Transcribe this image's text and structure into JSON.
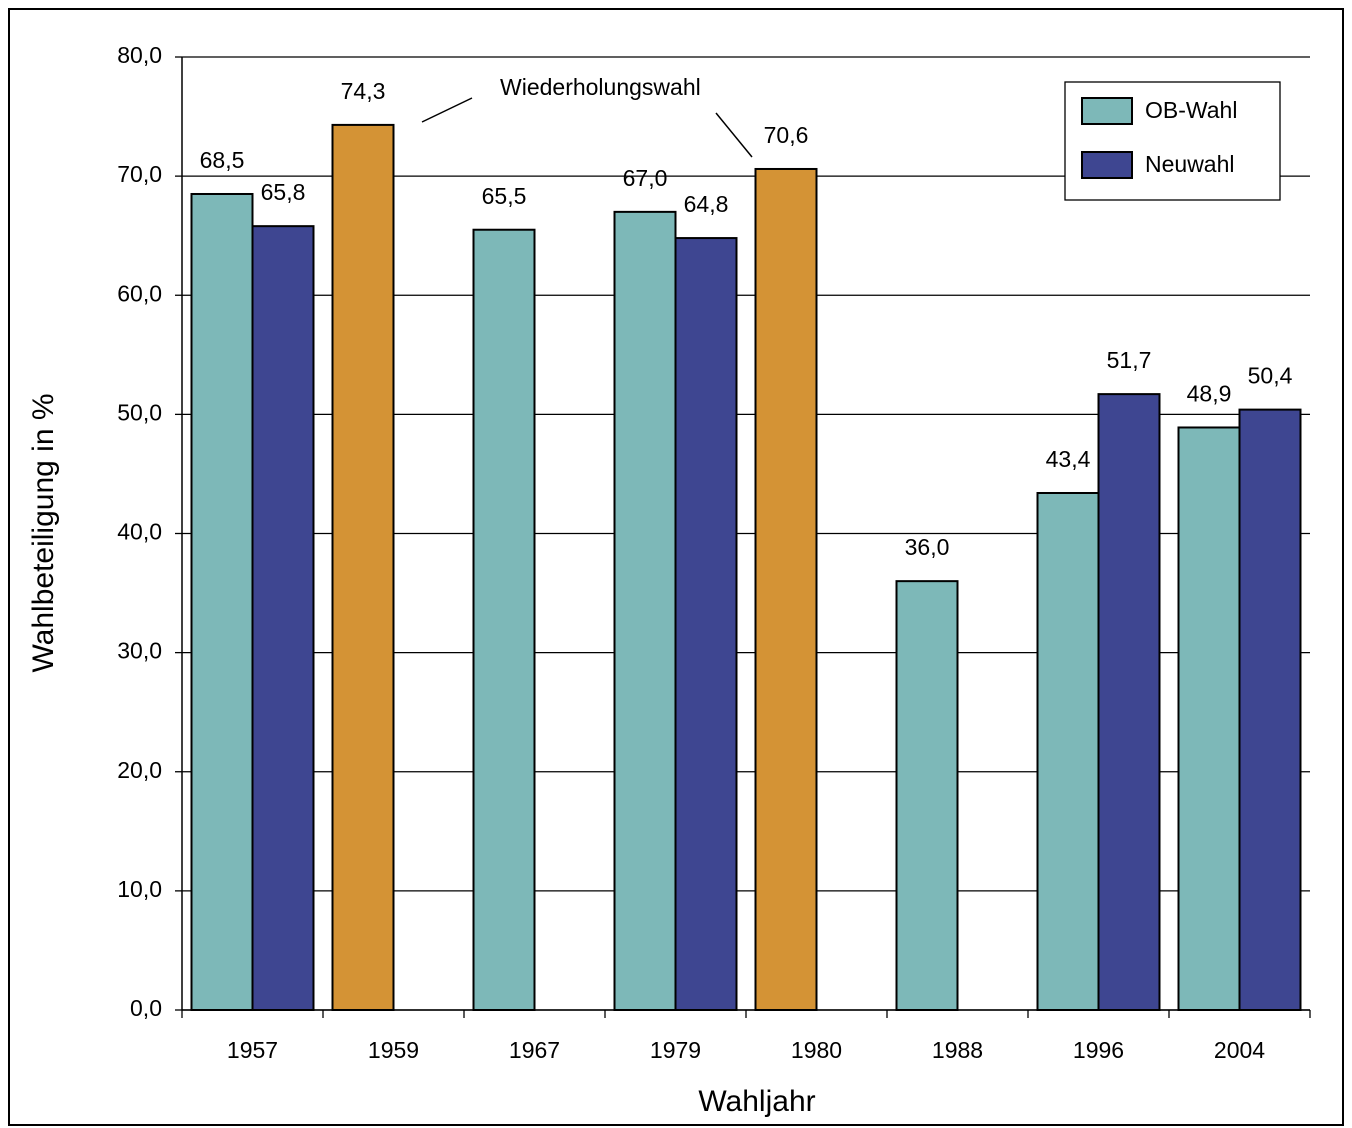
{
  "chart_data": {
    "type": "bar",
    "categories": [
      "1957",
      "1959",
      "1967",
      "1979",
      "1980",
      "1988",
      "1996",
      "2004"
    ],
    "series": [
      {
        "name": "OB-Wahl",
        "color": "#7db8b8",
        "legend": true,
        "values": [
          68.5,
          null,
          65.5,
          67.0,
          null,
          36.0,
          43.4,
          48.9
        ],
        "value_labels": [
          "68,5",
          null,
          "65,5",
          "67,0",
          null,
          "36,0",
          "43,4",
          "48,9"
        ]
      },
      {
        "name": "Neuwahl",
        "color": "#3e4691",
        "legend": true,
        "values": [
          65.8,
          null,
          null,
          64.8,
          null,
          null,
          51.7,
          50.4
        ],
        "value_labels": [
          "65,8",
          null,
          null,
          "64,8",
          null,
          null,
          "51,7",
          "50,4"
        ]
      },
      {
        "name": "Wiederholungswahl",
        "color": "#d49335",
        "legend": false,
        "values": [
          null,
          74.3,
          null,
          null,
          70.6,
          null,
          null,
          null
        ],
        "value_labels": [
          null,
          "74,3",
          null,
          null,
          "70,6",
          null,
          null,
          null
        ]
      }
    ],
    "ylabel": "Wahlbeteiligung in %",
    "xlabel": "Wahljahr",
    "ylim": [
      0,
      80
    ],
    "yticks": [
      {
        "value": 0,
        "label": "0,0"
      },
      {
        "value": 10,
        "label": "10,0"
      },
      {
        "value": 20,
        "label": "20,0"
      },
      {
        "value": 30,
        "label": "30,0"
      },
      {
        "value": 40,
        "label": "40,0"
      },
      {
        "value": 50,
        "label": "50,0"
      },
      {
        "value": 60,
        "label": "60,0"
      },
      {
        "value": 70,
        "label": "70,0"
      },
      {
        "value": 80,
        "label": "80,0"
      }
    ],
    "grid": true,
    "legend_position": "upper right"
  }
}
